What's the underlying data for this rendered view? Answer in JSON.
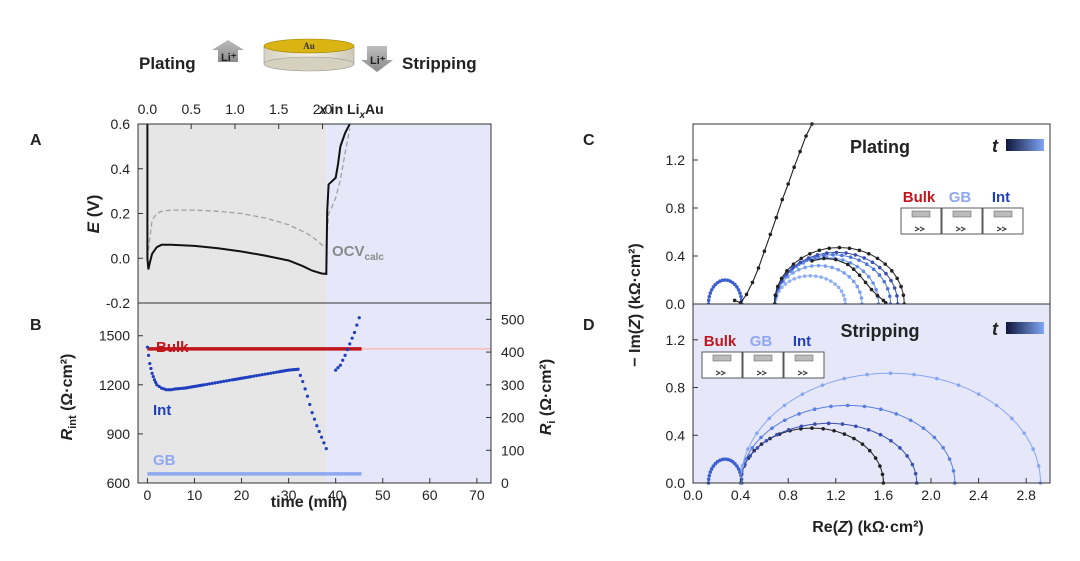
{
  "header": {
    "plating": "Plating",
    "stripping": "Stripping",
    "li_ion": "Li⁺",
    "electrode": "Au"
  },
  "colors": {
    "bulk": "#c0161d",
    "int": "#1f3fbf",
    "gb": "#8fa8f0",
    "light": "#5b86e5",
    "shade_gray": "#e6e6e6",
    "shade_blue": "#e6e8fa",
    "ocv": "#a0a0a0"
  },
  "chart_data": [
    {
      "panel": "A",
      "type": "line",
      "top_axis": {
        "label_x": "x",
        "label_rest": " in Li",
        "label_sub": "x",
        "label_end": "Au",
        "ticks": [
          "0.0",
          "0.5",
          "1.0",
          "1.5",
          "2.0"
        ],
        "tick_values": [
          0,
          0.5,
          1.0,
          1.5,
          2.0
        ],
        "time_per_x": 18.6
      },
      "xlim": [
        -2,
        73
      ],
      "ylim": [
        -0.2,
        0.6
      ],
      "y_ticks": [
        "-0.2",
        "0.0",
        "0.2",
        "0.4",
        "0.6"
      ],
      "y_tick_values": [
        -0.2,
        0,
        0.2,
        0.4,
        0.6
      ],
      "ylabel_main": "E",
      "ylabel_unit": " (V)",
      "ocv_label_main": "OCV",
      "ocv_label_sub": "calc",
      "series": [
        {
          "name": "E",
          "style": "solid",
          "x": [
            0,
            0,
            0.2,
            0.5,
            1,
            2,
            3,
            5,
            10,
            15,
            20,
            25,
            30,
            33,
            35,
            37,
            38,
            38.2,
            38.5,
            39,
            40,
            40.5,
            41,
            42,
            43
          ],
          "y": [
            0.6,
            0.0,
            -0.05,
            -0.02,
            0.02,
            0.05,
            0.06,
            0.06,
            0.055,
            0.045,
            0.03,
            0.012,
            -0.01,
            -0.035,
            -0.055,
            -0.068,
            -0.07,
            0.21,
            0.33,
            0.34,
            0.36,
            0.42,
            0.5,
            0.56,
            0.6
          ]
        },
        {
          "name": "OCV_calc",
          "style": "dashed",
          "x": [
            0,
            1,
            2,
            3,
            5,
            10,
            15,
            20,
            25,
            30,
            34,
            36,
            37,
            38,
            38.5,
            39,
            40,
            41,
            42,
            43
          ],
          "y": [
            0.0,
            0.17,
            0.2,
            0.21,
            0.215,
            0.215,
            0.21,
            0.2,
            0.18,
            0.15,
            0.11,
            0.08,
            0.06,
            0.05,
            0.2,
            0.22,
            0.27,
            0.35,
            0.47,
            0.58
          ]
        }
      ]
    },
    {
      "panel": "B",
      "type": "scatter",
      "xlim": [
        -2,
        73
      ],
      "x_ticks": [
        "0",
        "10",
        "20",
        "30",
        "40",
        "50",
        "60",
        "70"
      ],
      "x_tick_values": [
        0,
        10,
        20,
        30,
        40,
        50,
        60,
        70
      ],
      "xlabel": "time (min)",
      "ylim_left": [
        600,
        1700
      ],
      "y_ticks_left": [
        "600",
        "900",
        "1200",
        "1500"
      ],
      "y_tick_values_left": [
        600,
        900,
        1200,
        1500
      ],
      "ylim_right": [
        0,
        550
      ],
      "y_ticks_right": [
        "0",
        "100",
        "200",
        "300",
        "400",
        "500"
      ],
      "y_tick_values_right": [
        0,
        100,
        200,
        300,
        400,
        500
      ],
      "ylabel_left_main": "R",
      "ylabel_left_sub": "int",
      "ylabel_left_unit": " (Ω·cm²)",
      "ylabel_right_main": "R",
      "ylabel_right_sub": "i",
      "ylabel_right_unit": " (Ω·cm²)",
      "series": [
        {
          "name": "Bulk",
          "axis": "right",
          "x_range": [
            0,
            45.5
          ],
          "value": 410
        },
        {
          "name": "GB",
          "axis": "right",
          "x_range": [
            0,
            45.5
          ],
          "value": 28
        },
        {
          "name": "Int",
          "axis": "left",
          "x": [
            0,
            0.5,
            1,
            1.5,
            2,
            3,
            4,
            5,
            6,
            8,
            10,
            12,
            15,
            18,
            20,
            22,
            25,
            28,
            30,
            32,
            33,
            34,
            35,
            36,
            37,
            38,
            40,
            41,
            42,
            43,
            44,
            45
          ],
          "y": [
            1430,
            1330,
            1270,
            1230,
            1200,
            1180,
            1170,
            1170,
            1175,
            1180,
            1190,
            1200,
            1215,
            1230,
            1240,
            1250,
            1265,
            1280,
            1290,
            1295,
            1220,
            1130,
            1030,
            950,
            880,
            810,
            1290,
            1320,
            1380,
            1450,
            1520,
            1610
          ]
        }
      ],
      "bulk_ref_value": 410
    },
    {
      "panel": "C",
      "type": "scatter",
      "title": "Plating",
      "xlim": [
        0,
        3.0
      ],
      "ylim": [
        0,
        1.5
      ],
      "y_ticks": [
        "0.0",
        "0.4",
        "0.8",
        "1.2"
      ],
      "y_tick_values": [
        0,
        0.4,
        0.8,
        1.2
      ],
      "t_label": "t",
      "legend": [
        "Bulk",
        "GB",
        "Int"
      ],
      "arcs": [
        {
          "c": 0.985,
          "r": 0.295,
          "ymax": 0.235
        },
        {
          "c": 1.055,
          "r": 0.365,
          "ymax": 0.32
        },
        {
          "c": 1.125,
          "r": 0.435,
          "ymax": 0.385
        },
        {
          "c": 1.175,
          "r": 0.485,
          "ymax": 0.41
        },
        {
          "c": 1.205,
          "r": 0.515,
          "ymax": 0.43
        },
        {
          "c": 1.23,
          "r": 0.545,
          "ymax": 0.47
        }
      ],
      "small_arc": {
        "c": 0.27,
        "r": 0.14,
        "ymax": 0.2
      },
      "dark_curve": {
        "x": [
          0.35,
          0.4,
          0.45,
          0.5,
          0.55,
          0.6,
          0.65,
          0.7,
          0.75,
          0.8,
          0.85,
          0.9,
          0.95,
          1.0
        ],
        "y": [
          0.03,
          0.01,
          0.08,
          0.18,
          0.3,
          0.44,
          0.58,
          0.72,
          0.87,
          1.0,
          1.14,
          1.27,
          1.4,
          1.5
        ]
      },
      "tail_curve": {
        "x": [
          1.0,
          1.1,
          1.2,
          1.3,
          1.35,
          1.4,
          1.45,
          1.5,
          1.55,
          1.6,
          1.62
        ],
        "y": [
          0.36,
          0.38,
          0.37,
          0.33,
          0.29,
          0.24,
          0.18,
          0.12,
          0.07,
          0.03,
          0.01
        ]
      }
    },
    {
      "panel": "D",
      "type": "scatter",
      "title": "Stripping",
      "xlim": [
        0,
        3.0
      ],
      "ylim": [
        0,
        1.5
      ],
      "x_ticks": [
        "0.0",
        "0.4",
        "0.8",
        "1.2",
        "1.6",
        "2.0",
        "2.4",
        "2.8"
      ],
      "x_tick_values": [
        0,
        0.4,
        0.8,
        1.2,
        1.6,
        2.0,
        2.4,
        2.8
      ],
      "y_ticks": [
        "0.0",
        "0.4",
        "0.8",
        "1.2"
      ],
      "y_tick_values": [
        0,
        0.4,
        0.8,
        1.2
      ],
      "xlabel_main": "Re(",
      "xlabel_italic": "Z",
      "xlabel_end": ") (kΩ·cm²)",
      "ylabel_main": "− Im(",
      "ylabel_italic": "Z",
      "ylabel_end": ") (kΩ·cm²)",
      "t_label": "t",
      "legend": [
        "Bulk",
        "GB",
        "Int"
      ],
      "arcs": [
        {
          "c": 1.0,
          "r": 0.6,
          "ymax": 0.46,
          "color": "#222"
        },
        {
          "c": 1.14,
          "r": 0.74,
          "ymax": 0.5
        },
        {
          "c": 1.3,
          "r": 0.9,
          "ymax": 0.65
        },
        {
          "c": 1.66,
          "r": 1.26,
          "ymax": 0.92
        }
      ],
      "small_arc": {
        "c": 0.27,
        "r": 0.14,
        "ymax": 0.2
      }
    }
  ],
  "panel_letters": [
    "A",
    "B",
    "C",
    "D"
  ]
}
